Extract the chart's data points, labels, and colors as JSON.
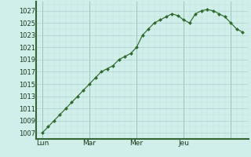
{
  "y_values": [
    1007,
    1008,
    1009,
    1010,
    1011,
    1012,
    1013,
    1014,
    1015,
    1016,
    1017,
    1017.5,
    1018,
    1019,
    1019.5,
    1020,
    1021,
    1023,
    1024,
    1025,
    1025.5,
    1026,
    1026.5,
    1026.2,
    1025.5,
    1025,
    1026.5,
    1027,
    1027.2,
    1027,
    1026.5,
    1026,
    1025,
    1024,
    1023.5
  ],
  "day_ticks_x": [
    0,
    8,
    16,
    24,
    32
  ],
  "day_labels": [
    "Lun",
    "Mar",
    "Mer",
    "Jeu",
    ""
  ],
  "yticks": [
    1007,
    1009,
    1011,
    1013,
    1015,
    1017,
    1019,
    1021,
    1023,
    1025,
    1027
  ],
  "ylim": [
    1006.0,
    1028.5
  ],
  "xlim": [
    -0.5,
    34.5
  ],
  "line_color": "#2d6a2d",
  "marker_color": "#2d6a2d",
  "bg_color": "#d0eeea",
  "grid_color_major": "#aad0cc",
  "grid_color_minor": "#c0e2de",
  "spine_color": "#336633",
  "vline_color": "#7aaa8a"
}
